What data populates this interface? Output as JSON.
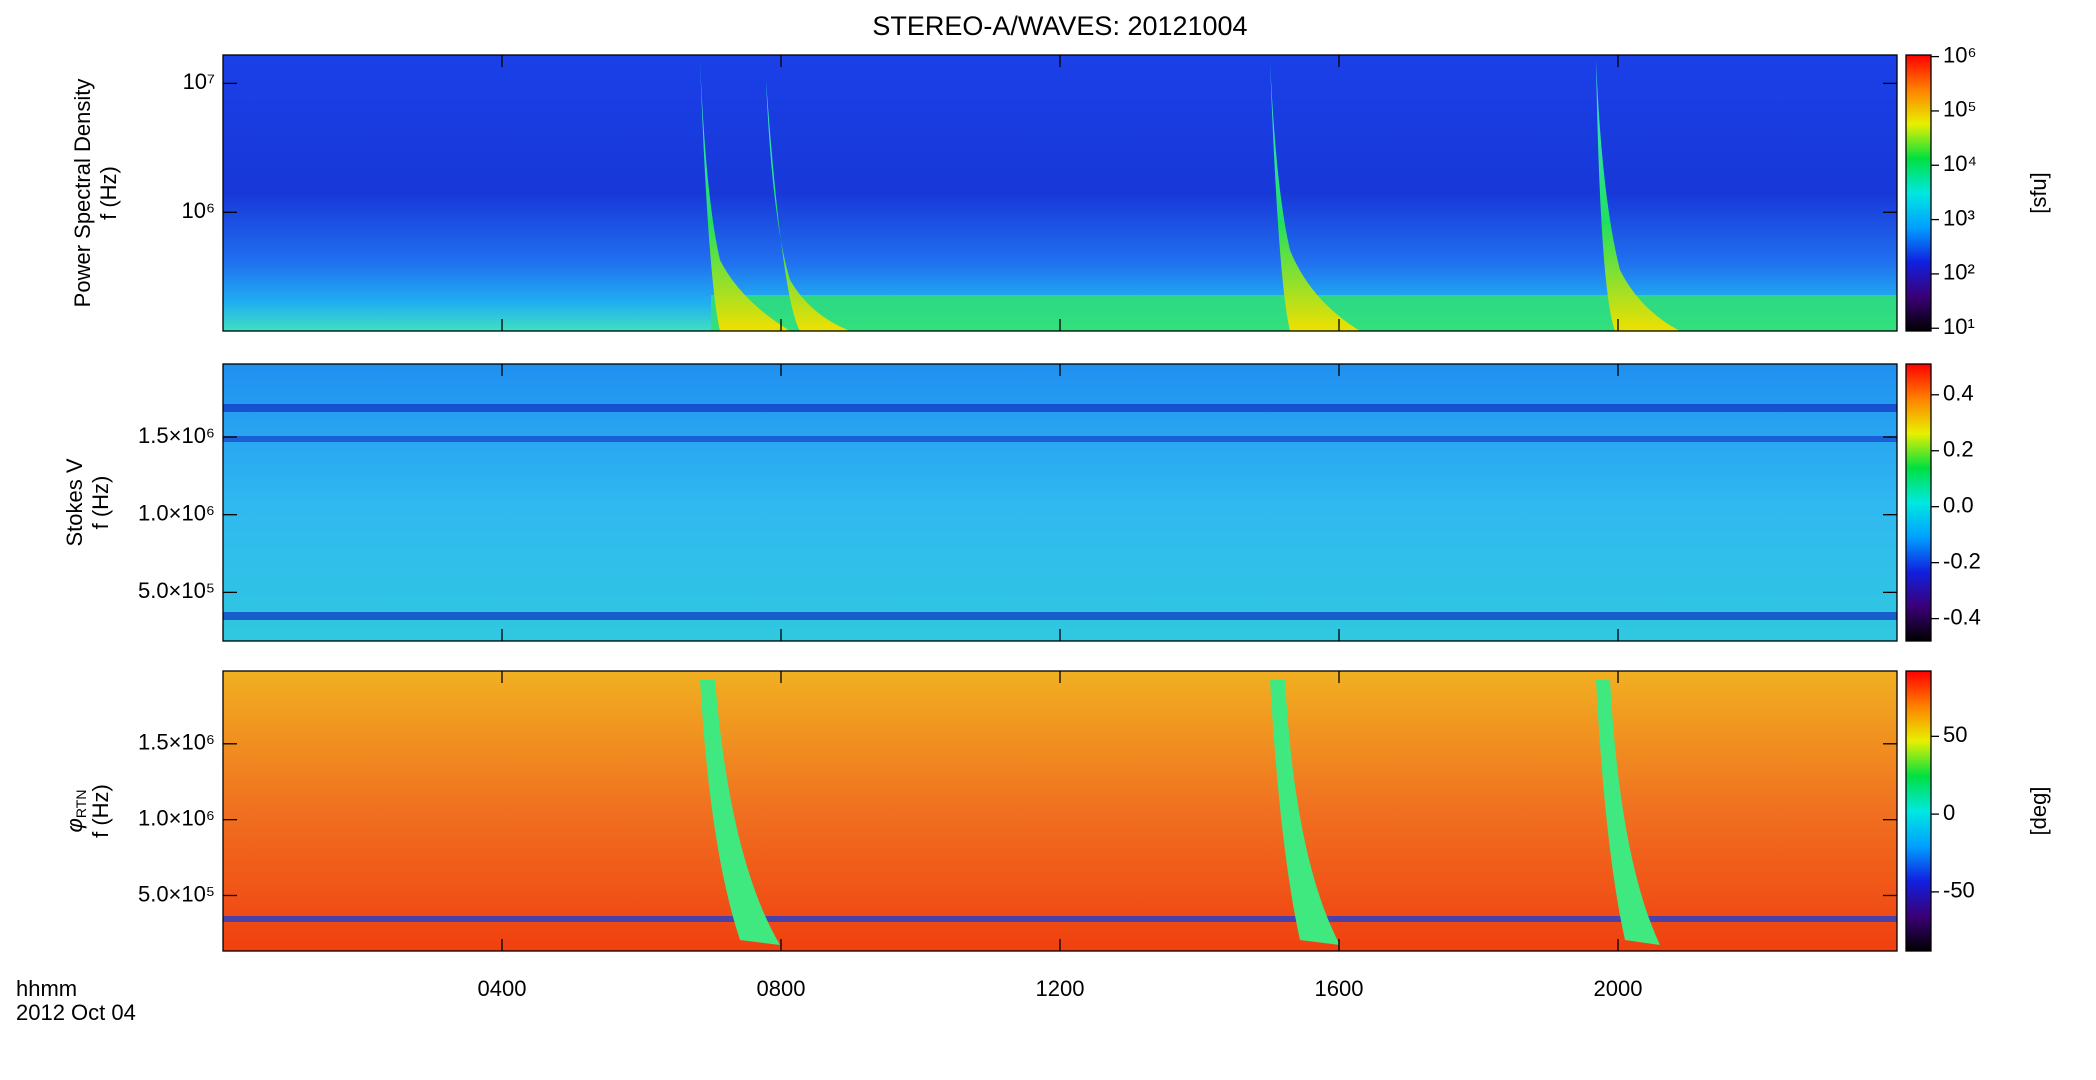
{
  "chart_data": {
    "type": "spectrogram",
    "title": "STEREO-A/WAVES: 20121004",
    "xlabel": "hhmm",
    "xsublabel": "2012 Oct 04",
    "xlim": [
      0,
      24
    ],
    "xticks": [
      {
        "value": 4,
        "label": "0400"
      },
      {
        "value": 8,
        "label": "0800"
      },
      {
        "value": 12,
        "label": "1200"
      },
      {
        "value": 16,
        "label": "1600"
      },
      {
        "value": 20,
        "label": "2000"
      }
    ],
    "panels": [
      {
        "ylabel": [
          {
            "text": "Power Spectral Density"
          },
          {
            "text": "f (Hz)"
          }
        ],
        "yscale": "log",
        "ylim": [
          120000,
          16600000
        ],
        "yticks": [
          {
            "value": 1000000,
            "label": "10⁶"
          },
          {
            "value": 10000000,
            "label": "10⁷"
          }
        ],
        "colorbar": {
          "label": "[sfu]",
          "scale": "log",
          "lim": [
            8.9,
            1070000
          ],
          "ticks": [
            {
              "value": 10,
              "label": "10¹"
            },
            {
              "value": 100,
              "label": "10²"
            },
            {
              "value": 1000,
              "label": "10³"
            },
            {
              "value": 10000,
              "label": "10⁴"
            },
            {
              "value": 100000,
              "label": "10⁵"
            },
            {
              "value": 1000000,
              "label": "10⁶"
            }
          ]
        }
      },
      {
        "ylabel": [
          {
            "text": "Stokes V"
          },
          {
            "text": "f (Hz)"
          }
        ],
        "yscale": "linear",
        "ylim": [
          187000,
          1970000
        ],
        "yticks": [
          {
            "value": 500000,
            "label": "5.0×10⁵"
          },
          {
            "value": 1000000,
            "label": "1.0×10⁶"
          },
          {
            "value": 1500000,
            "label": "1.5×10⁶"
          }
        ],
        "colorbar": {
          "scale": "linear",
          "lim": [
            -0.48,
            0.51
          ],
          "ticks": [
            -0.4,
            -0.2,
            {
              "value": 0,
              "label": "0.0"
            },
            0.2,
            0.4
          ]
        }
      },
      {
        "ylabel": [
          {
            "text": "φ",
            "sub": "RTN"
          },
          {
            "text": "f (Hz)"
          }
        ],
        "yscale": "linear",
        "ylim": [
          134000,
          1980000
        ],
        "yticks": [
          {
            "value": 500000,
            "label": "5.0×10⁵"
          },
          {
            "value": 1000000,
            "label": "1.0×10⁶"
          },
          {
            "value": 1500000,
            "label": "1.5×10⁶"
          }
        ],
        "colorbar": {
          "label": "[deg]",
          "scale": "linear",
          "lim": [
            -88,
            92
          ],
          "ticks": [
            -50,
            0,
            50
          ]
        }
      }
    ],
    "colormap": [
      "#000000",
      "#3a0078",
      "#1020e0",
      "#00a0ff",
      "#00e8e0",
      "#00e040",
      "#e8f000",
      "#ff8000",
      "#ff0000"
    ]
  }
}
